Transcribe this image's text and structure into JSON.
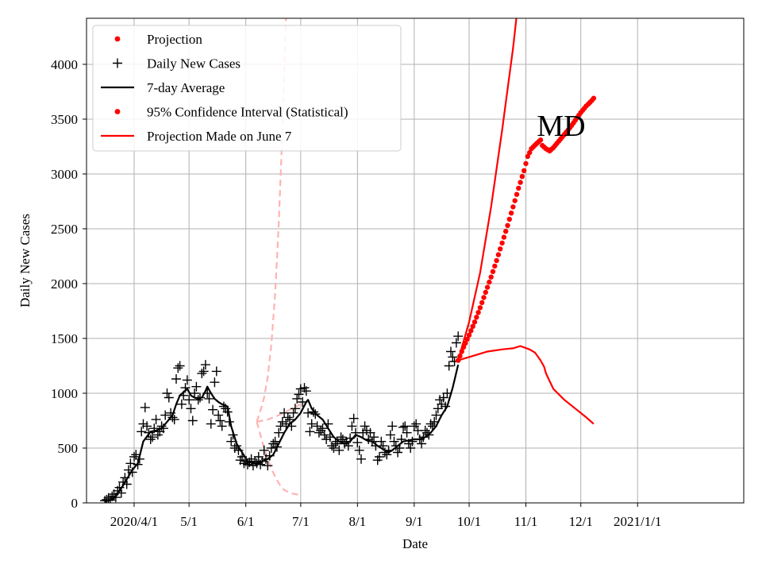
{
  "chart_data": {
    "type": "line",
    "title": "",
    "annotation": "MD",
    "xlabel": "Date",
    "ylabel": "Daily New Cases",
    "x_start": "2020-03-01",
    "xlim": [
      "2020-03-06",
      "2021-02-28"
    ],
    "ylim": [
      0,
      4420
    ],
    "grid": true,
    "legend_position": "top-left",
    "x_ticks": [
      {
        "date": "2020-04-01",
        "label": "2020/4/1"
      },
      {
        "date": "2020-05-01",
        "label": "5/1"
      },
      {
        "date": "2020-06-01",
        "label": "6/1"
      },
      {
        "date": "2020-07-01",
        "label": "7/1"
      },
      {
        "date": "2020-08-01",
        "label": "8/1"
      },
      {
        "date": "2020-09-01",
        "label": "9/1"
      },
      {
        "date": "2020-10-01",
        "label": "10/1"
      },
      {
        "date": "2020-11-01",
        "label": "11/1"
      },
      {
        "date": "2020-12-01",
        "label": "12/1"
      },
      {
        "date": "2021-01-01",
        "label": "2021/1/1"
      }
    ],
    "y_ticks": [
      0,
      500,
      1000,
      1500,
      2000,
      2500,
      3000,
      3500,
      4000
    ],
    "legend": [
      {
        "label": "Projection",
        "marker": "dot",
        "color": "#ff0000"
      },
      {
        "label": "Daily New Cases",
        "marker": "plus",
        "color": "#000000"
      },
      {
        "label": "7-day Average",
        "marker": "line",
        "color": "#000000"
      },
      {
        "label": "95% Confidence Interval (Statistical)",
        "marker": "dot",
        "color": "#ff0000"
      },
      {
        "label": "Projection Made on June 7",
        "marker": "line",
        "color": "#ff0000"
      }
    ],
    "colors": {
      "projection": "#ff0000",
      "cases": "#000000",
      "avg": "#000000",
      "june7": "#ffb3b3"
    },
    "daily_cases": [
      [
        15,
        20
      ],
      [
        16,
        30
      ],
      [
        17,
        45
      ],
      [
        18,
        25
      ],
      [
        19,
        60
      ],
      [
        20,
        80
      ],
      [
        21,
        50
      ],
      [
        22,
        110
      ],
      [
        23,
        140
      ],
      [
        24,
        90
      ],
      [
        25,
        190
      ],
      [
        26,
        230
      ],
      [
        27,
        170
      ],
      [
        28,
        300
      ],
      [
        29,
        360
      ],
      [
        30,
        280
      ],
      [
        31,
        420
      ],
      [
        32,
        440
      ],
      [
        33,
        350
      ],
      [
        34,
        400
      ],
      [
        35,
        650
      ],
      [
        36,
        720
      ],
      [
        37,
        870
      ],
      [
        38,
        700
      ],
      [
        39,
        640
      ],
      [
        40,
        580
      ],
      [
        41,
        600
      ],
      [
        42,
        680
      ],
      [
        43,
        760
      ],
      [
        44,
        620
      ],
      [
        45,
        650
      ],
      [
        46,
        700
      ],
      [
        47,
        680
      ],
      [
        48,
        800
      ],
      [
        49,
        1000
      ],
      [
        50,
        960
      ],
      [
        51,
        820
      ],
      [
        52,
        780
      ],
      [
        53,
        760
      ],
      [
        54,
        1130
      ],
      [
        55,
        1230
      ],
      [
        56,
        1250
      ],
      [
        57,
        900
      ],
      [
        58,
        980
      ],
      [
        59,
        1050
      ],
      [
        60,
        1120
      ],
      [
        61,
        940
      ],
      [
        62,
        860
      ],
      [
        63,
        750
      ],
      [
        64,
        1000
      ],
      [
        65,
        1060
      ],
      [
        66,
        940
      ],
      [
        67,
        960
      ],
      [
        68,
        1180
      ],
      [
        69,
        1200
      ],
      [
        70,
        1260
      ],
      [
        71,
        1000
      ],
      [
        72,
        950
      ],
      [
        73,
        720
      ],
      [
        74,
        850
      ],
      [
        75,
        1100
      ],
      [
        76,
        1200
      ],
      [
        77,
        800
      ],
      [
        78,
        750
      ],
      [
        79,
        700
      ],
      [
        80,
        880
      ],
      [
        81,
        860
      ],
      [
        82,
        830
      ],
      [
        83,
        740
      ],
      [
        84,
        560
      ],
      [
        85,
        620
      ],
      [
        86,
        500
      ],
      [
        87,
        520
      ],
      [
        88,
        480
      ],
      [
        89,
        390
      ],
      [
        90,
        420
      ],
      [
        91,
        360
      ],
      [
        92,
        380
      ],
      [
        93,
        350
      ],
      [
        94,
        370
      ],
      [
        95,
        400
      ],
      [
        96,
        340
      ],
      [
        97,
        380
      ],
      [
        98,
        360
      ],
      [
        99,
        420
      ],
      [
        100,
        350
      ],
      [
        101,
        380
      ],
      [
        102,
        480
      ],
      [
        103,
        400
      ],
      [
        104,
        340
      ],
      [
        105,
        430
      ],
      [
        106,
        500
      ],
      [
        107,
        540
      ],
      [
        108,
        560
      ],
      [
        109,
        510
      ],
      [
        110,
        640
      ],
      [
        111,
        700
      ],
      [
        112,
        740
      ],
      [
        113,
        820
      ],
      [
        114,
        720
      ],
      [
        115,
        780
      ],
      [
        116,
        760
      ],
      [
        117,
        700
      ],
      [
        118,
        820
      ],
      [
        119,
        860
      ],
      [
        120,
        950
      ],
      [
        121,
        990
      ],
      [
        122,
        1040
      ],
      [
        123,
        920
      ],
      [
        124,
        1050
      ],
      [
        125,
        1020
      ],
      [
        126,
        820
      ],
      [
        127,
        650
      ],
      [
        128,
        720
      ],
      [
        129,
        830
      ],
      [
        130,
        810
      ],
      [
        131,
        700
      ],
      [
        132,
        640
      ],
      [
        133,
        660
      ],
      [
        134,
        680
      ],
      [
        135,
        620
      ],
      [
        136,
        580
      ],
      [
        137,
        720
      ],
      [
        138,
        600
      ],
      [
        139,
        520
      ],
      [
        140,
        500
      ],
      [
        141,
        540
      ],
      [
        142,
        560
      ],
      [
        143,
        480
      ],
      [
        144,
        600
      ],
      [
        145,
        580
      ],
      [
        146,
        540
      ],
      [
        147,
        560
      ],
      [
        148,
        520
      ],
      [
        149,
        590
      ],
      [
        150,
        700
      ],
      [
        151,
        770
      ],
      [
        152,
        640
      ],
      [
        153,
        550
      ],
      [
        154,
        480
      ],
      [
        155,
        400
      ],
      [
        156,
        640
      ],
      [
        157,
        700
      ],
      [
        158,
        660
      ],
      [
        159,
        580
      ],
      [
        160,
        640
      ],
      [
        161,
        560
      ],
      [
        162,
        600
      ],
      [
        163,
        520
      ],
      [
        164,
        390
      ],
      [
        165,
        420
      ],
      [
        166,
        560
      ],
      [
        167,
        520
      ],
      [
        168,
        460
      ],
      [
        169,
        440
      ],
      [
        170,
        480
      ],
      [
        171,
        620
      ],
      [
        172,
        700
      ],
      [
        173,
        560
      ],
      [
        174,
        520
      ],
      [
        175,
        460
      ],
      [
        176,
        500
      ],
      [
        177,
        580
      ],
      [
        178,
        690
      ],
      [
        179,
        700
      ],
      [
        180,
        640
      ],
      [
        181,
        540
      ],
      [
        182,
        500
      ],
      [
        183,
        560
      ],
      [
        184,
        700
      ],
      [
        185,
        720
      ],
      [
        186,
        660
      ],
      [
        187,
        580
      ],
      [
        188,
        540
      ],
      [
        189,
        600
      ],
      [
        190,
        660
      ],
      [
        191,
        640
      ],
      [
        192,
        620
      ],
      [
        193,
        720
      ],
      [
        194,
        700
      ],
      [
        195,
        740
      ],
      [
        196,
        800
      ],
      [
        197,
        860
      ],
      [
        198,
        940
      ],
      [
        199,
        900
      ],
      [
        200,
        960
      ],
      [
        201,
        880
      ],
      [
        202,
        1000
      ],
      [
        203,
        1250
      ],
      [
        204,
        1380
      ],
      [
        205,
        1330
      ],
      [
        206,
        1290
      ],
      [
        207,
        1460
      ],
      [
        208,
        1520
      ]
    ],
    "avg_7day": [
      [
        15,
        10
      ],
      [
        20,
        40
      ],
      [
        25,
        160
      ],
      [
        30,
        300
      ],
      [
        33,
        360
      ],
      [
        36,
        560
      ],
      [
        40,
        650
      ],
      [
        43,
        660
      ],
      [
        46,
        680
      ],
      [
        49,
        740
      ],
      [
        52,
        800
      ],
      [
        54,
        900
      ],
      [
        56,
        980
      ],
      [
        60,
        1040
      ],
      [
        62,
        980
      ],
      [
        64,
        960
      ],
      [
        66,
        950
      ],
      [
        68,
        960
      ],
      [
        70,
        1020
      ],
      [
        71,
        1060
      ],
      [
        73,
        1000
      ],
      [
        75,
        950
      ],
      [
        77,
        920
      ],
      [
        79,
        900
      ],
      [
        82,
        880
      ],
      [
        84,
        700
      ],
      [
        87,
        540
      ],
      [
        90,
        460
      ],
      [
        93,
        380
      ],
      [
        96,
        360
      ],
      [
        100,
        370
      ],
      [
        104,
        400
      ],
      [
        107,
        440
      ],
      [
        110,
        540
      ],
      [
        113,
        640
      ],
      [
        116,
        720
      ],
      [
        119,
        760
      ],
      [
        122,
        820
      ],
      [
        125,
        920
      ],
      [
        126,
        940
      ],
      [
        128,
        860
      ],
      [
        131,
        800
      ],
      [
        134,
        760
      ],
      [
        137,
        680
      ],
      [
        140,
        600
      ],
      [
        143,
        560
      ],
      [
        146,
        540
      ],
      [
        149,
        560
      ],
      [
        152,
        620
      ],
      [
        155,
        600
      ],
      [
        158,
        570
      ],
      [
        161,
        560
      ],
      [
        164,
        520
      ],
      [
        168,
        480
      ],
      [
        170,
        460
      ],
      [
        172,
        480
      ],
      [
        175,
        520
      ],
      [
        178,
        560
      ],
      [
        181,
        570
      ],
      [
        184,
        580
      ],
      [
        187,
        580
      ],
      [
        190,
        600
      ],
      [
        193,
        640
      ],
      [
        196,
        700
      ],
      [
        199,
        800
      ],
      [
        202,
        880
      ],
      [
        205,
        1050
      ],
      [
        208,
        1260
      ]
    ],
    "projection": [
      [
        208,
        1300
      ],
      [
        211,
        1420
      ],
      [
        214,
        1530
      ],
      [
        217,
        1650
      ],
      [
        220,
        1780
      ],
      [
        223,
        1920
      ],
      [
        226,
        2060
      ],
      [
        229,
        2210
      ],
      [
        232,
        2370
      ],
      [
        235,
        2530
      ],
      [
        238,
        2700
      ],
      [
        241,
        2870
      ],
      [
        244,
        3030
      ],
      [
        246,
        3160
      ],
      [
        248,
        3230
      ],
      [
        251,
        3280
      ],
      [
        253,
        3310
      ],
      [
        254,
        3260
      ],
      [
        256,
        3230
      ],
      [
        258,
        3210
      ],
      [
        260,
        3240
      ],
      [
        263,
        3300
      ],
      [
        266,
        3360
      ],
      [
        269,
        3420
      ],
      [
        272,
        3490
      ],
      [
        275,
        3560
      ],
      [
        278,
        3620
      ],
      [
        281,
        3670
      ],
      [
        282,
        3690
      ]
    ],
    "ci_upper": [
      [
        208,
        1300
      ],
      [
        214,
        1650
      ],
      [
        220,
        2100
      ],
      [
        226,
        2700
      ],
      [
        232,
        3400
      ],
      [
        238,
        4150
      ],
      [
        241,
        4600
      ]
    ],
    "ci_lower": [
      [
        208,
        1300
      ],
      [
        216,
        1340
      ],
      [
        224,
        1380
      ],
      [
        232,
        1400
      ],
      [
        238,
        1410
      ],
      [
        242,
        1430
      ],
      [
        247,
        1400
      ],
      [
        250,
        1370
      ],
      [
        253,
        1300
      ],
      [
        255,
        1240
      ],
      [
        256,
        1180
      ],
      [
        260,
        1040
      ],
      [
        266,
        940
      ],
      [
        272,
        860
      ],
      [
        278,
        780
      ],
      [
        282,
        720
      ]
    ],
    "june7_proj": [
      [
        98,
        740
      ],
      [
        104,
        760
      ],
      [
        110,
        800
      ],
      [
        116,
        850
      ],
      [
        122,
        900
      ],
      [
        126,
        930
      ]
    ],
    "june7_upper": [
      [
        98,
        740
      ],
      [
        100,
        840
      ],
      [
        102,
        960
      ],
      [
        104,
        1150
      ],
      [
        106,
        1450
      ],
      [
        108,
        1900
      ],
      [
        110,
        2550
      ],
      [
        112,
        3400
      ],
      [
        114,
        4450
      ]
    ],
    "june7_lower": [
      [
        98,
        740
      ],
      [
        100,
        620
      ],
      [
        102,
        500
      ],
      [
        104,
        400
      ],
      [
        106,
        310
      ],
      [
        108,
        240
      ],
      [
        110,
        180
      ],
      [
        112,
        130
      ],
      [
        116,
        90
      ],
      [
        122,
        70
      ]
    ]
  }
}
